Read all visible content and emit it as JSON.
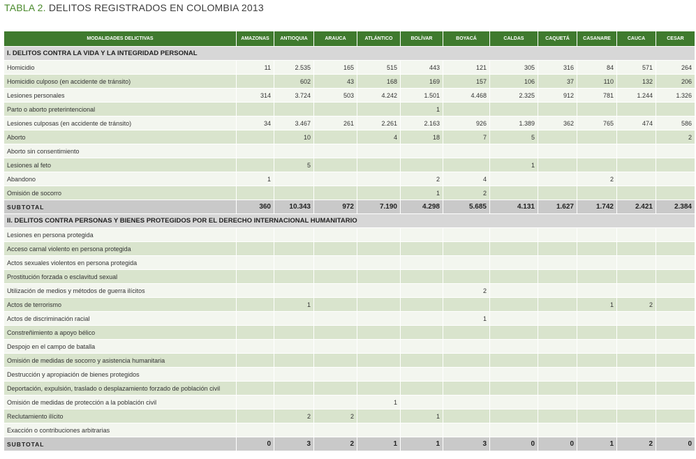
{
  "header": {
    "label": "TABLA 2.",
    "title": "DELITOS REGISTRADOS EN COLOMBIA 2013"
  },
  "table": {
    "columns": [
      "MODALIDADES DELICTIVAS",
      "AMAZONAS",
      "ANTIOQUIA",
      "ARAUCA",
      "ATLÁNTICO",
      "BOLÍVAR",
      "BOYACÁ",
      "CALDAS",
      "CAQUETÁ",
      "CASANARE",
      "CAUCA",
      "CESAR"
    ],
    "sections": [
      {
        "title": "I. DELITOS CONTRA LA VIDA Y LA INTEGRIDAD PERSONAL",
        "rows": [
          {
            "label": "Homicidio",
            "cells": [
              "11",
              "2.535",
              "165",
              "515",
              "443",
              "121",
              "305",
              "316",
              "84",
              "571",
              "264"
            ]
          },
          {
            "label": "Homicidio culposo (en accidente de tránsito)",
            "cells": [
              null,
              "602",
              "43",
              "168",
              "169",
              "157",
              "106",
              "37",
              "110",
              "132",
              "206"
            ]
          },
          {
            "label": "Lesiones personales",
            "cells": [
              "314",
              "3.724",
              "503",
              "4.242",
              "1.501",
              "4.468",
              "2.325",
              "912",
              "781",
              "1.244",
              "1.326"
            ]
          },
          {
            "label": "Parto o aborto preterintencional",
            "cells": [
              null,
              null,
              null,
              null,
              "1",
              null,
              null,
              null,
              null,
              null,
              null
            ]
          },
          {
            "label": "Lesiones culposas (en accidente de tránsito)",
            "cells": [
              "34",
              "3.467",
              "261",
              "2.261",
              "2.163",
              "926",
              "1.389",
              "362",
              "765",
              "474",
              "586"
            ]
          },
          {
            "label": "Aborto",
            "cells": [
              null,
              "10",
              null,
              "4",
              "18",
              "7",
              "5",
              null,
              null,
              null,
              "2"
            ]
          },
          {
            "label": "Aborto sin consentimiento",
            "cells": [
              null,
              null,
              null,
              null,
              null,
              null,
              null,
              null,
              null,
              null,
              null
            ]
          },
          {
            "label": "Lesiones al feto",
            "cells": [
              null,
              "5",
              null,
              null,
              null,
              null,
              "1",
              null,
              null,
              null,
              null
            ]
          },
          {
            "label": "Abandono",
            "cells": [
              "1",
              null,
              null,
              null,
              "2",
              "4",
              null,
              null,
              "2",
              null,
              null
            ]
          },
          {
            "label": "Omisión de socorro",
            "cells": [
              null,
              null,
              null,
              null,
              "1",
              "2",
              null,
              null,
              null,
              null,
              null
            ]
          }
        ],
        "subtotal": {
          "label": "SUBTOTAL",
          "cells": [
            "360",
            "10.343",
            "972",
            "7.190",
            "4.298",
            "5.685",
            "4.131",
            "1.627",
            "1.742",
            "2.421",
            "2.384"
          ]
        }
      },
      {
        "title": "II. DELITOS CONTRA PERSONAS Y BIENES PROTEGIDOS POR EL DERECHO INTERNACIONAL HUMANITARIO",
        "rows": [
          {
            "label": "Lesiones en persona protegida",
            "cells": [
              null,
              null,
              null,
              null,
              null,
              null,
              null,
              null,
              null,
              null,
              null
            ]
          },
          {
            "label": "Acceso carnal violento en persona protegida",
            "cells": [
              null,
              null,
              null,
              null,
              null,
              null,
              null,
              null,
              null,
              null,
              null
            ]
          },
          {
            "label": "Actos sexuales violentos en persona protegida",
            "cells": [
              null,
              null,
              null,
              null,
              null,
              null,
              null,
              null,
              null,
              null,
              null
            ]
          },
          {
            "label": "Prostitución forzada o esclavitud sexual",
            "cells": [
              null,
              null,
              null,
              null,
              null,
              null,
              null,
              null,
              null,
              null,
              null
            ]
          },
          {
            "label": "Utilización de medios y métodos de guerra ilícitos",
            "cells": [
              null,
              null,
              null,
              null,
              null,
              "2",
              null,
              null,
              null,
              null,
              null
            ]
          },
          {
            "label": "Actos de terrorismo",
            "cells": [
              null,
              "1",
              null,
              null,
              null,
              null,
              null,
              null,
              "1",
              "2",
              null
            ]
          },
          {
            "label": "Actos de discriminación racial",
            "cells": [
              null,
              null,
              null,
              null,
              null,
              "1",
              null,
              null,
              null,
              null,
              null
            ]
          },
          {
            "label": "Constreñimiento a apoyo bélico",
            "cells": [
              null,
              null,
              null,
              null,
              null,
              null,
              null,
              null,
              null,
              null,
              null
            ]
          },
          {
            "label": "Despojo en el campo de batalla",
            "cells": [
              null,
              null,
              null,
              null,
              null,
              null,
              null,
              null,
              null,
              null,
              null
            ]
          },
          {
            "label": "Omisión de medidas de socorro y asistencia humanitaria",
            "cells": [
              null,
              null,
              null,
              null,
              null,
              null,
              null,
              null,
              null,
              null,
              null
            ]
          },
          {
            "label": "Destrucción y apropiación de bienes protegidos",
            "cells": [
              null,
              null,
              null,
              null,
              null,
              null,
              null,
              null,
              null,
              null,
              null
            ]
          },
          {
            "label": "Deportación, expulsión, traslado o desplazamiento forzado de población civil",
            "cells": [
              null,
              null,
              null,
              null,
              null,
              null,
              null,
              null,
              null,
              null,
              null
            ]
          },
          {
            "label": "Omisión de medidas de protección a la población civil",
            "cells": [
              null,
              null,
              null,
              "1",
              null,
              null,
              null,
              null,
              null,
              null,
              null
            ]
          },
          {
            "label": "Reclutamiento ilícito",
            "cells": [
              null,
              "2",
              "2",
              null,
              "1",
              null,
              null,
              null,
              null,
              null,
              null
            ]
          },
          {
            "label": "Exacción o contribuciones arbitrarias",
            "cells": [
              null,
              null,
              null,
              null,
              null,
              null,
              null,
              null,
              null,
              null,
              null
            ]
          }
        ],
        "subtotal": {
          "label": "SUBTOTAL",
          "cells": [
            "0",
            "3",
            "2",
            "1",
            "1",
            "3",
            "0",
            "0",
            "1",
            "2",
            "0"
          ]
        }
      }
    ]
  }
}
